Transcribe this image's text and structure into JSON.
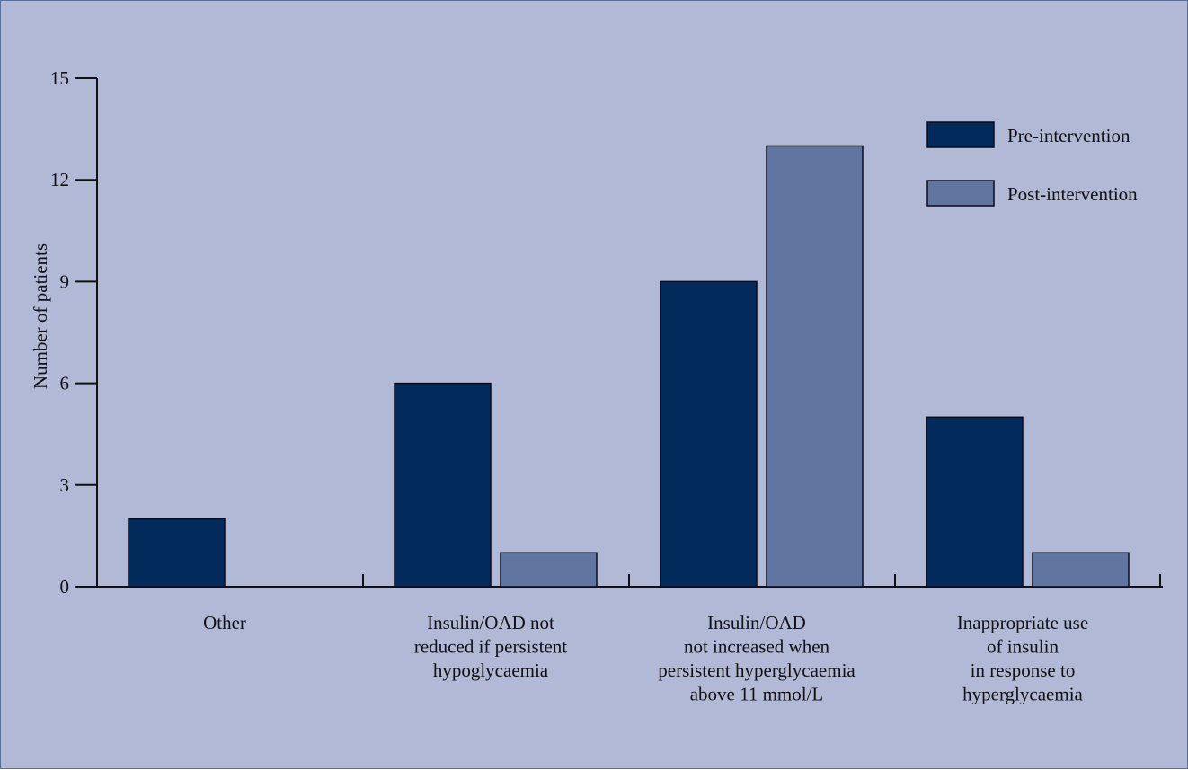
{
  "chart_data": {
    "type": "bar",
    "ylabel": "Number of patients",
    "xlabel": "",
    "ylim": [
      0,
      15
    ],
    "yticks": [
      0,
      3,
      6,
      9,
      12,
      15
    ],
    "grid": false,
    "legend_position": "top-right",
    "categories": [
      [
        "Other"
      ],
      [
        "Insulin/OAD not",
        "reduced if persistent",
        "hypoglycaemia"
      ],
      [
        "Insulin/OAD",
        "not increased when",
        "persistent hyperglycaemia",
        "above 11 mmol/L"
      ],
      [
        "Inappropriate use",
        "of insulin",
        "in response to",
        "hyperglycaemia"
      ]
    ],
    "series": [
      {
        "name": "Pre-intervention",
        "values": [
          2,
          6,
          9,
          5
        ],
        "color": "#022a5a"
      },
      {
        "name": "Post-intervention",
        "values": [
          0,
          1,
          13,
          1
        ],
        "color": "#60759f"
      }
    ]
  },
  "colors": {
    "background": "#b2b9d6",
    "axis": "#111111",
    "bar_outline": "#0b0b1a"
  }
}
